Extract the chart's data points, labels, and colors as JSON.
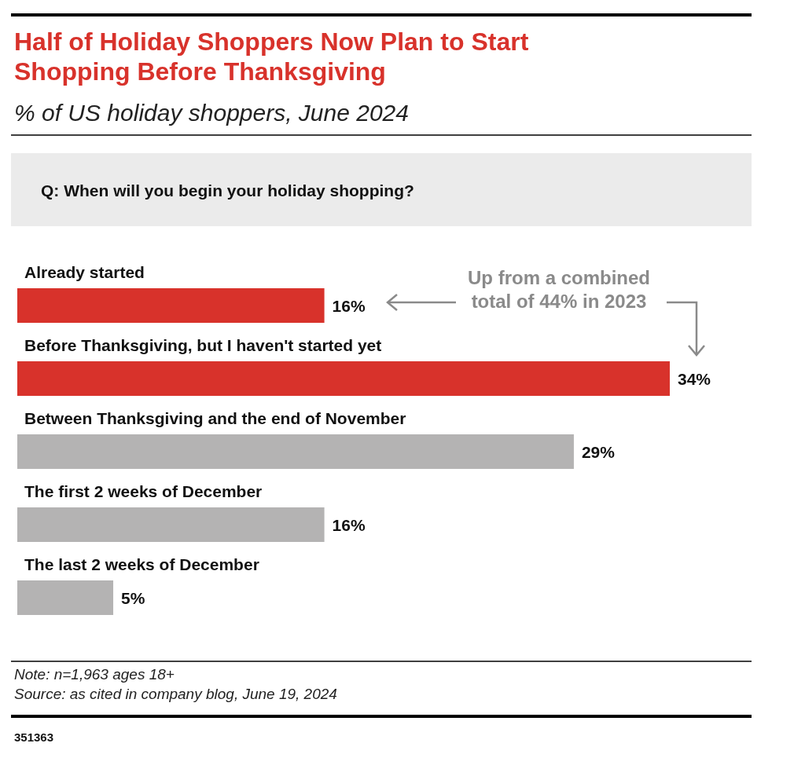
{
  "chart_data": {
    "type": "bar",
    "orientation": "horizontal",
    "title": "Half of Holiday Shoppers Now Plan to Start Shopping Before Thanksgiving",
    "subtitle": "% of US holiday shoppers, June 2024",
    "categories": [
      "Already started",
      "Before Thanksgiving, but I haven't started yet",
      "Between Thanksgiving and the end of November",
      "The first 2 weeks of December",
      "The last 2 weeks of December"
    ],
    "values": [
      16,
      34,
      29,
      16,
      5
    ],
    "colors": [
      "#d8322b",
      "#d8322b",
      "#b4b3b3",
      "#b4b3b3",
      "#b4b3b3"
    ],
    "value_labels": [
      "16%",
      "34%",
      "29%",
      "16%",
      "5%"
    ],
    "annotations": [
      "Q: When will you begin your holiday shopping?",
      "Up from a combined total of 44% in 2023",
      "Note: n=1,963 ages 18+",
      "Source: as cited in company blog, June 19, 2024",
      "351363"
    ]
  }
}
